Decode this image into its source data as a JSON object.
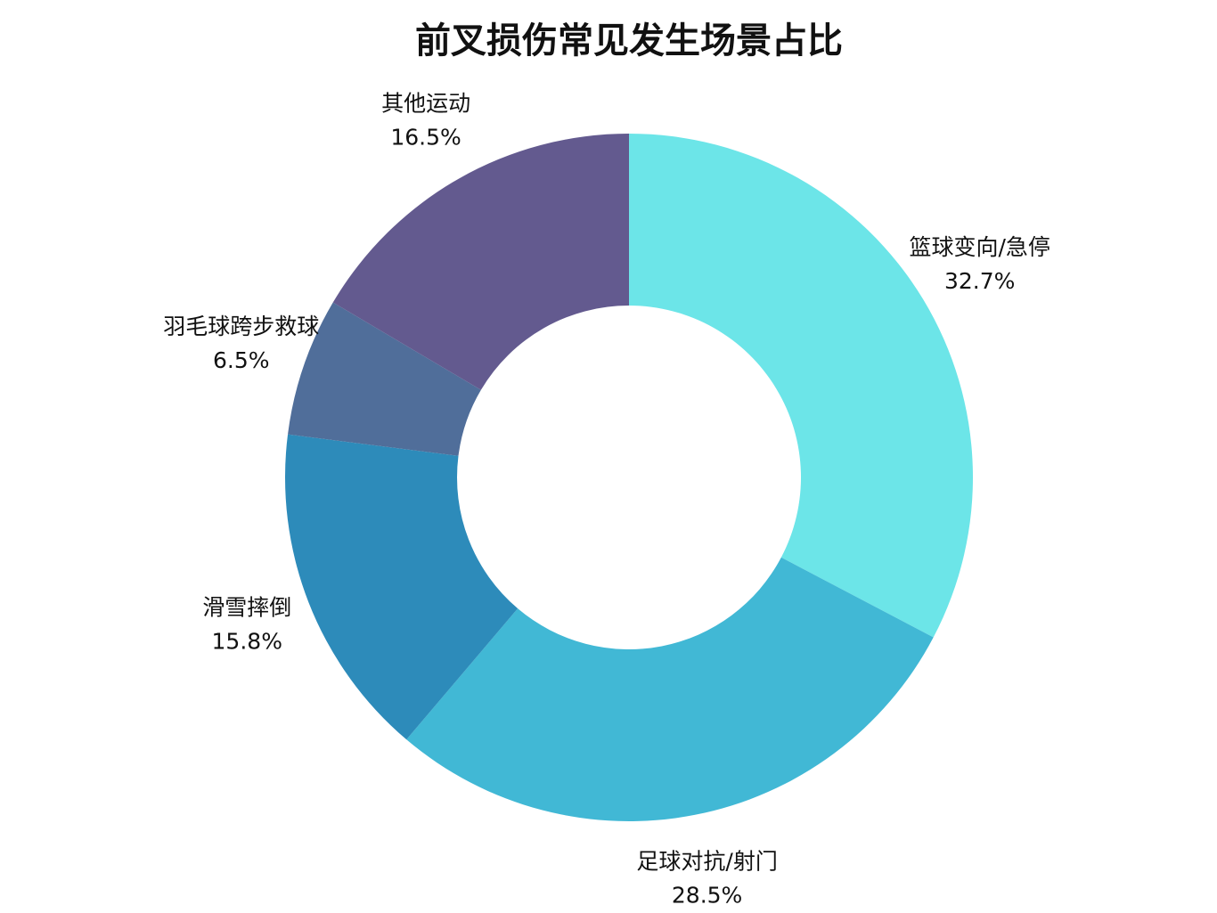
{
  "chart_data": {
    "type": "donut",
    "title": "前叉损伤常见发生场景占比",
    "categories": [
      "篮球变向/急停",
      "足球对抗/射门",
      "滑雪摔倒",
      "羽毛球跨步救球",
      "其他运动"
    ],
    "values": [
      32.7,
      28.5,
      15.8,
      6.5,
      16.5
    ],
    "value_labels": [
      "32.7%",
      "28.5%",
      "15.8%",
      "6.5%",
      "16.5%"
    ],
    "colors": [
      "#6ce5e8",
      "#41b8d5",
      "#2d8bba",
      "#506e9a",
      "#635a8f"
    ]
  }
}
